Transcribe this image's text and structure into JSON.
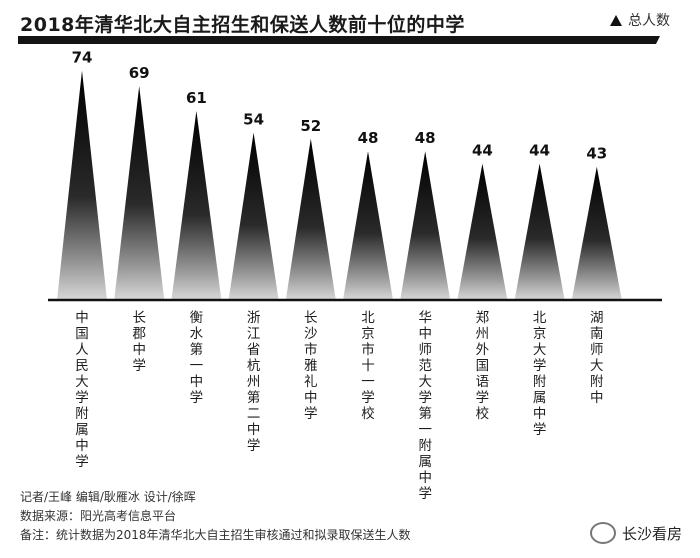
{
  "title": "2018年清华北大自主招生和保送人数前十位的中学",
  "legend_label": "总人数",
  "footer": {
    "credits": "记者/王峰  编辑/耿雁冰  设计/徐晖",
    "source": "数据来源：阳光高考信息平台",
    "note": "备注：统计数据为2018年清华北大自主招生审核通过和拟录取保送生人数"
  },
  "watermark": "长沙看房",
  "chart_data": {
    "type": "bar",
    "categories": [
      "中国人民大学附属中学",
      "长郡中学",
      "衡水第一中学",
      "浙江省杭州第二中学",
      "长沙市雅礼中学",
      "北京市十一学校",
      "华中师范大学第一附属中学",
      "郑州外国语学校",
      "北京大学附属中学",
      "湖南师大附中"
    ],
    "values": [
      74,
      69,
      61,
      54,
      52,
      48,
      48,
      44,
      44,
      43
    ],
    "legend": [
      "总人数"
    ],
    "ylim": [
      0,
      80
    ]
  }
}
